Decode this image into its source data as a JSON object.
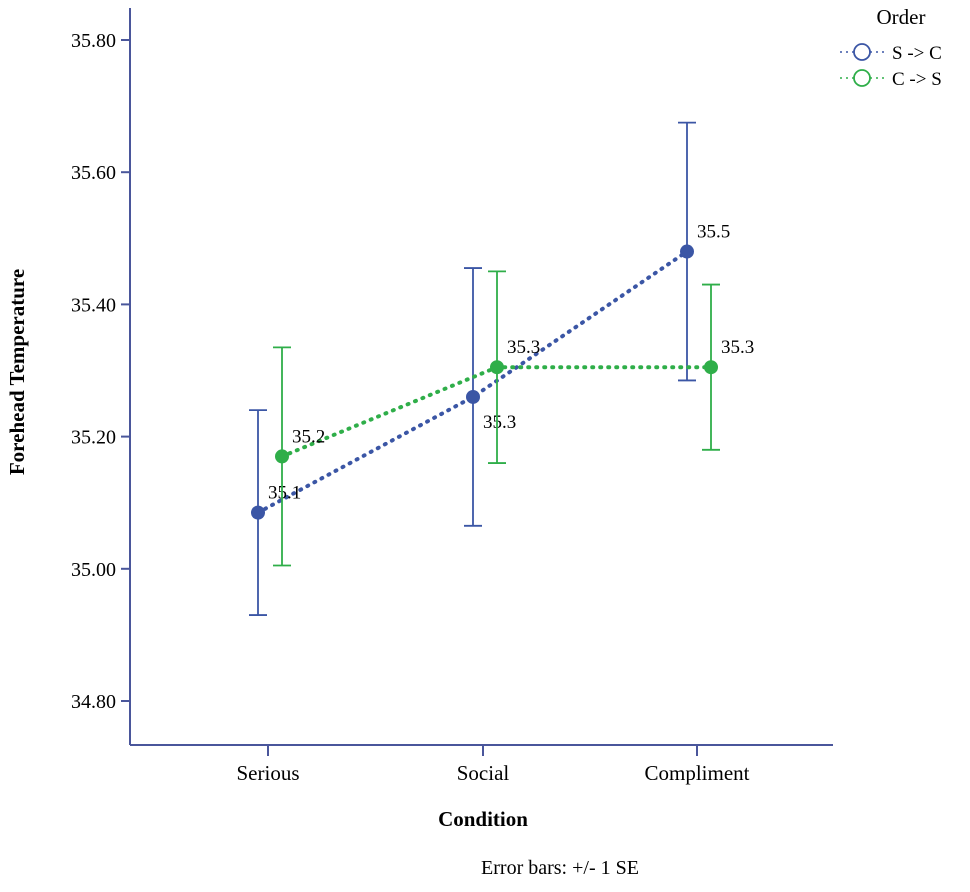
{
  "chart_data": {
    "type": "line",
    "title": "",
    "xlabel": "Condition",
    "ylabel": "Forehead Temperature",
    "footnote": "Error bars: +/- 1 SE",
    "legend_title": "Order",
    "legend_position": "top-right",
    "grid": false,
    "axis_color": "#4a569b",
    "categories": [
      "Serious",
      "Social",
      "Compliment"
    ],
    "y_ticks": [
      "35.80",
      "35.60",
      "35.40",
      "35.20",
      "35.00",
      "34.80"
    ],
    "ylim": [
      34.73,
      35.85
    ],
    "series": [
      {
        "name": "S -> C",
        "color": "#3b56a5",
        "values": [
          35.085,
          35.26,
          35.48
        ],
        "err_low": [
          34.93,
          35.065,
          35.285
        ],
        "err_high": [
          35.24,
          35.455,
          35.675
        ],
        "point_labels": [
          "35.1",
          "35.3",
          "35.5"
        ],
        "label_pos": [
          "above",
          "below",
          "above"
        ]
      },
      {
        "name": "C -> S",
        "color": "#2fae49",
        "values": [
          35.17,
          35.305,
          35.305
        ],
        "err_low": [
          35.005,
          35.16,
          35.18
        ],
        "err_high": [
          35.335,
          35.45,
          35.43
        ],
        "point_labels": [
          "35.2",
          "35.3",
          "35.3"
        ],
        "label_pos": [
          "above",
          "above",
          "above"
        ]
      }
    ]
  }
}
